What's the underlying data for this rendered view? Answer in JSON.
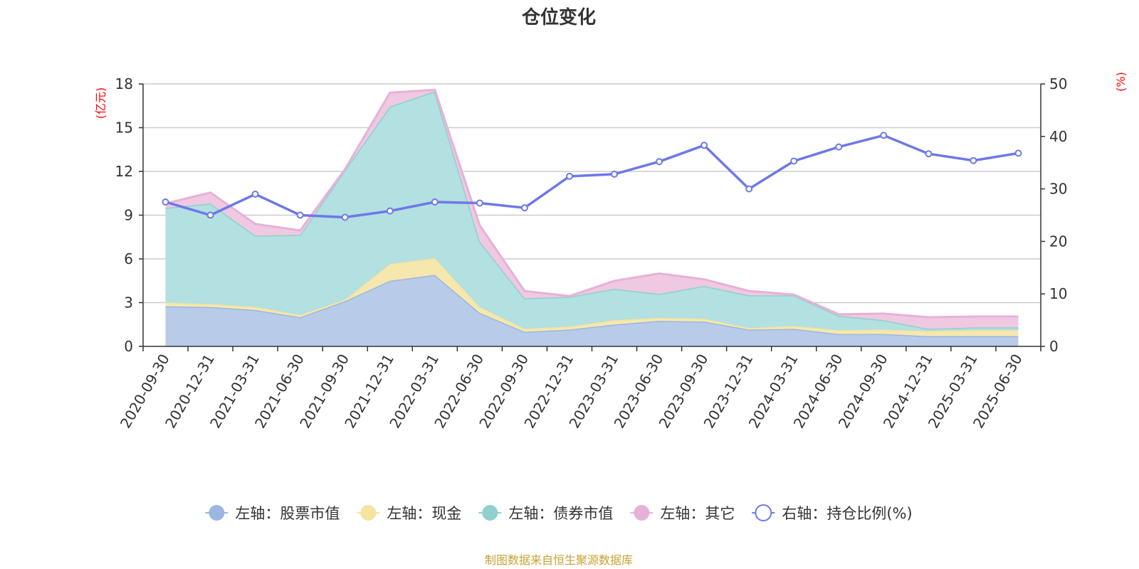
{
  "chart_data": {
    "type": "area",
    "title": "仓位变化",
    "left_axis_unit": "(亿元)",
    "right_axis_unit": "(%)",
    "categories": [
      "2020-09-30",
      "2020-12-31",
      "2021-03-31",
      "2021-06-30",
      "2021-09-30",
      "2021-12-31",
      "2022-03-31",
      "2022-06-30",
      "2022-09-30",
      "2022-12-31",
      "2023-03-31",
      "2023-06-30",
      "2023-09-30",
      "2023-12-31",
      "2024-03-31",
      "2024-06-30",
      "2024-09-30",
      "2024-12-31",
      "2025-03-31",
      "2025-06-30"
    ],
    "left_ylim": [
      0,
      18
    ],
    "left_ticks": [
      "0",
      "3",
      "6",
      "9",
      "12",
      "15",
      "18"
    ],
    "right_ylim": [
      0,
      50
    ],
    "right_ticks": [
      "0",
      "10",
      "20",
      "30",
      "40",
      "50"
    ],
    "stacked": true,
    "series": [
      {
        "name": "左轴：股票市值",
        "axis": "left",
        "color": "#9bb6e0",
        "fill": "#b8cce9",
        "values": [
          2.75,
          2.7,
          2.5,
          2.0,
          3.1,
          4.5,
          4.9,
          2.3,
          1.0,
          1.15,
          1.5,
          1.75,
          1.7,
          1.15,
          1.2,
          0.85,
          0.85,
          0.7,
          0.7,
          0.7
        ]
      },
      {
        "name": "左轴：现金",
        "axis": "left",
        "color": "#f5e3a0",
        "fill": "#f6e7ad",
        "values": [
          0.25,
          0.2,
          0.2,
          0.15,
          0.1,
          1.15,
          1.15,
          0.4,
          0.2,
          0.2,
          0.3,
          0.2,
          0.2,
          0.1,
          0.2,
          0.25,
          0.3,
          0.35,
          0.4,
          0.4
        ]
      },
      {
        "name": "左轴：债券市值",
        "axis": "left",
        "color": "#8fd0cf",
        "fill": "#b3e0e0",
        "values": [
          6.5,
          6.9,
          4.9,
          5.5,
          8.9,
          10.8,
          11.45,
          4.5,
          2.1,
          2.05,
          2.15,
          1.65,
          2.25,
          2.25,
          2.1,
          1.0,
          0.65,
          0.15,
          0.2,
          0.2
        ]
      },
      {
        "name": "左轴：其它",
        "axis": "left",
        "color": "#e6b1d8",
        "fill": "#efc9e1",
        "values": [
          0.3,
          0.75,
          0.8,
          0.3,
          0.05,
          0.95,
          0.1,
          1.1,
          0.5,
          0.05,
          0.55,
          1.4,
          0.45,
          0.3,
          0.05,
          0.1,
          0.45,
          0.8,
          0.75,
          0.75
        ]
      },
      {
        "name": "右轴：持仓比例(%)",
        "axis": "right",
        "type": "line",
        "color": "#6e78e8",
        "values": [
          27.5,
          25.0,
          29.0,
          25.0,
          24.6,
          25.8,
          27.5,
          27.3,
          26.4,
          32.4,
          32.8,
          35.2,
          38.3,
          30.0,
          35.3,
          38.0,
          40.2,
          36.7,
          35.4,
          36.8
        ]
      }
    ],
    "grid": true,
    "legend_position": "bottom",
    "source_note": "制图数据来自恒生聚源数据库"
  }
}
